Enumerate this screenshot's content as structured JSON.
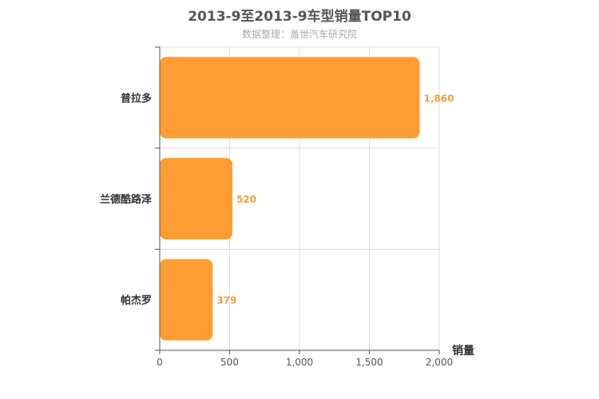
{
  "chart_data": {
    "type": "bar",
    "orientation": "horizontal",
    "title": "2013-9至2013-9车型销量TOP10",
    "subtitle": "数据整理：盖世汽车研究院",
    "categories": [
      "普拉多",
      "兰德酷路泽",
      "帕杰罗"
    ],
    "values": [
      1860,
      520,
      379
    ],
    "value_labels": [
      "1,860",
      "520",
      "379"
    ],
    "xlabel": "销量",
    "ylabel": "",
    "xlim": [
      0,
      2000
    ],
    "xticks": [
      0,
      500,
      1000,
      1500,
      2000
    ],
    "xtick_labels": [
      "0",
      "500",
      "1,000",
      "1,500",
      "2,000"
    ],
    "grid": true,
    "bar_color": "#ff9c33",
    "label_color": "#f0a040"
  }
}
